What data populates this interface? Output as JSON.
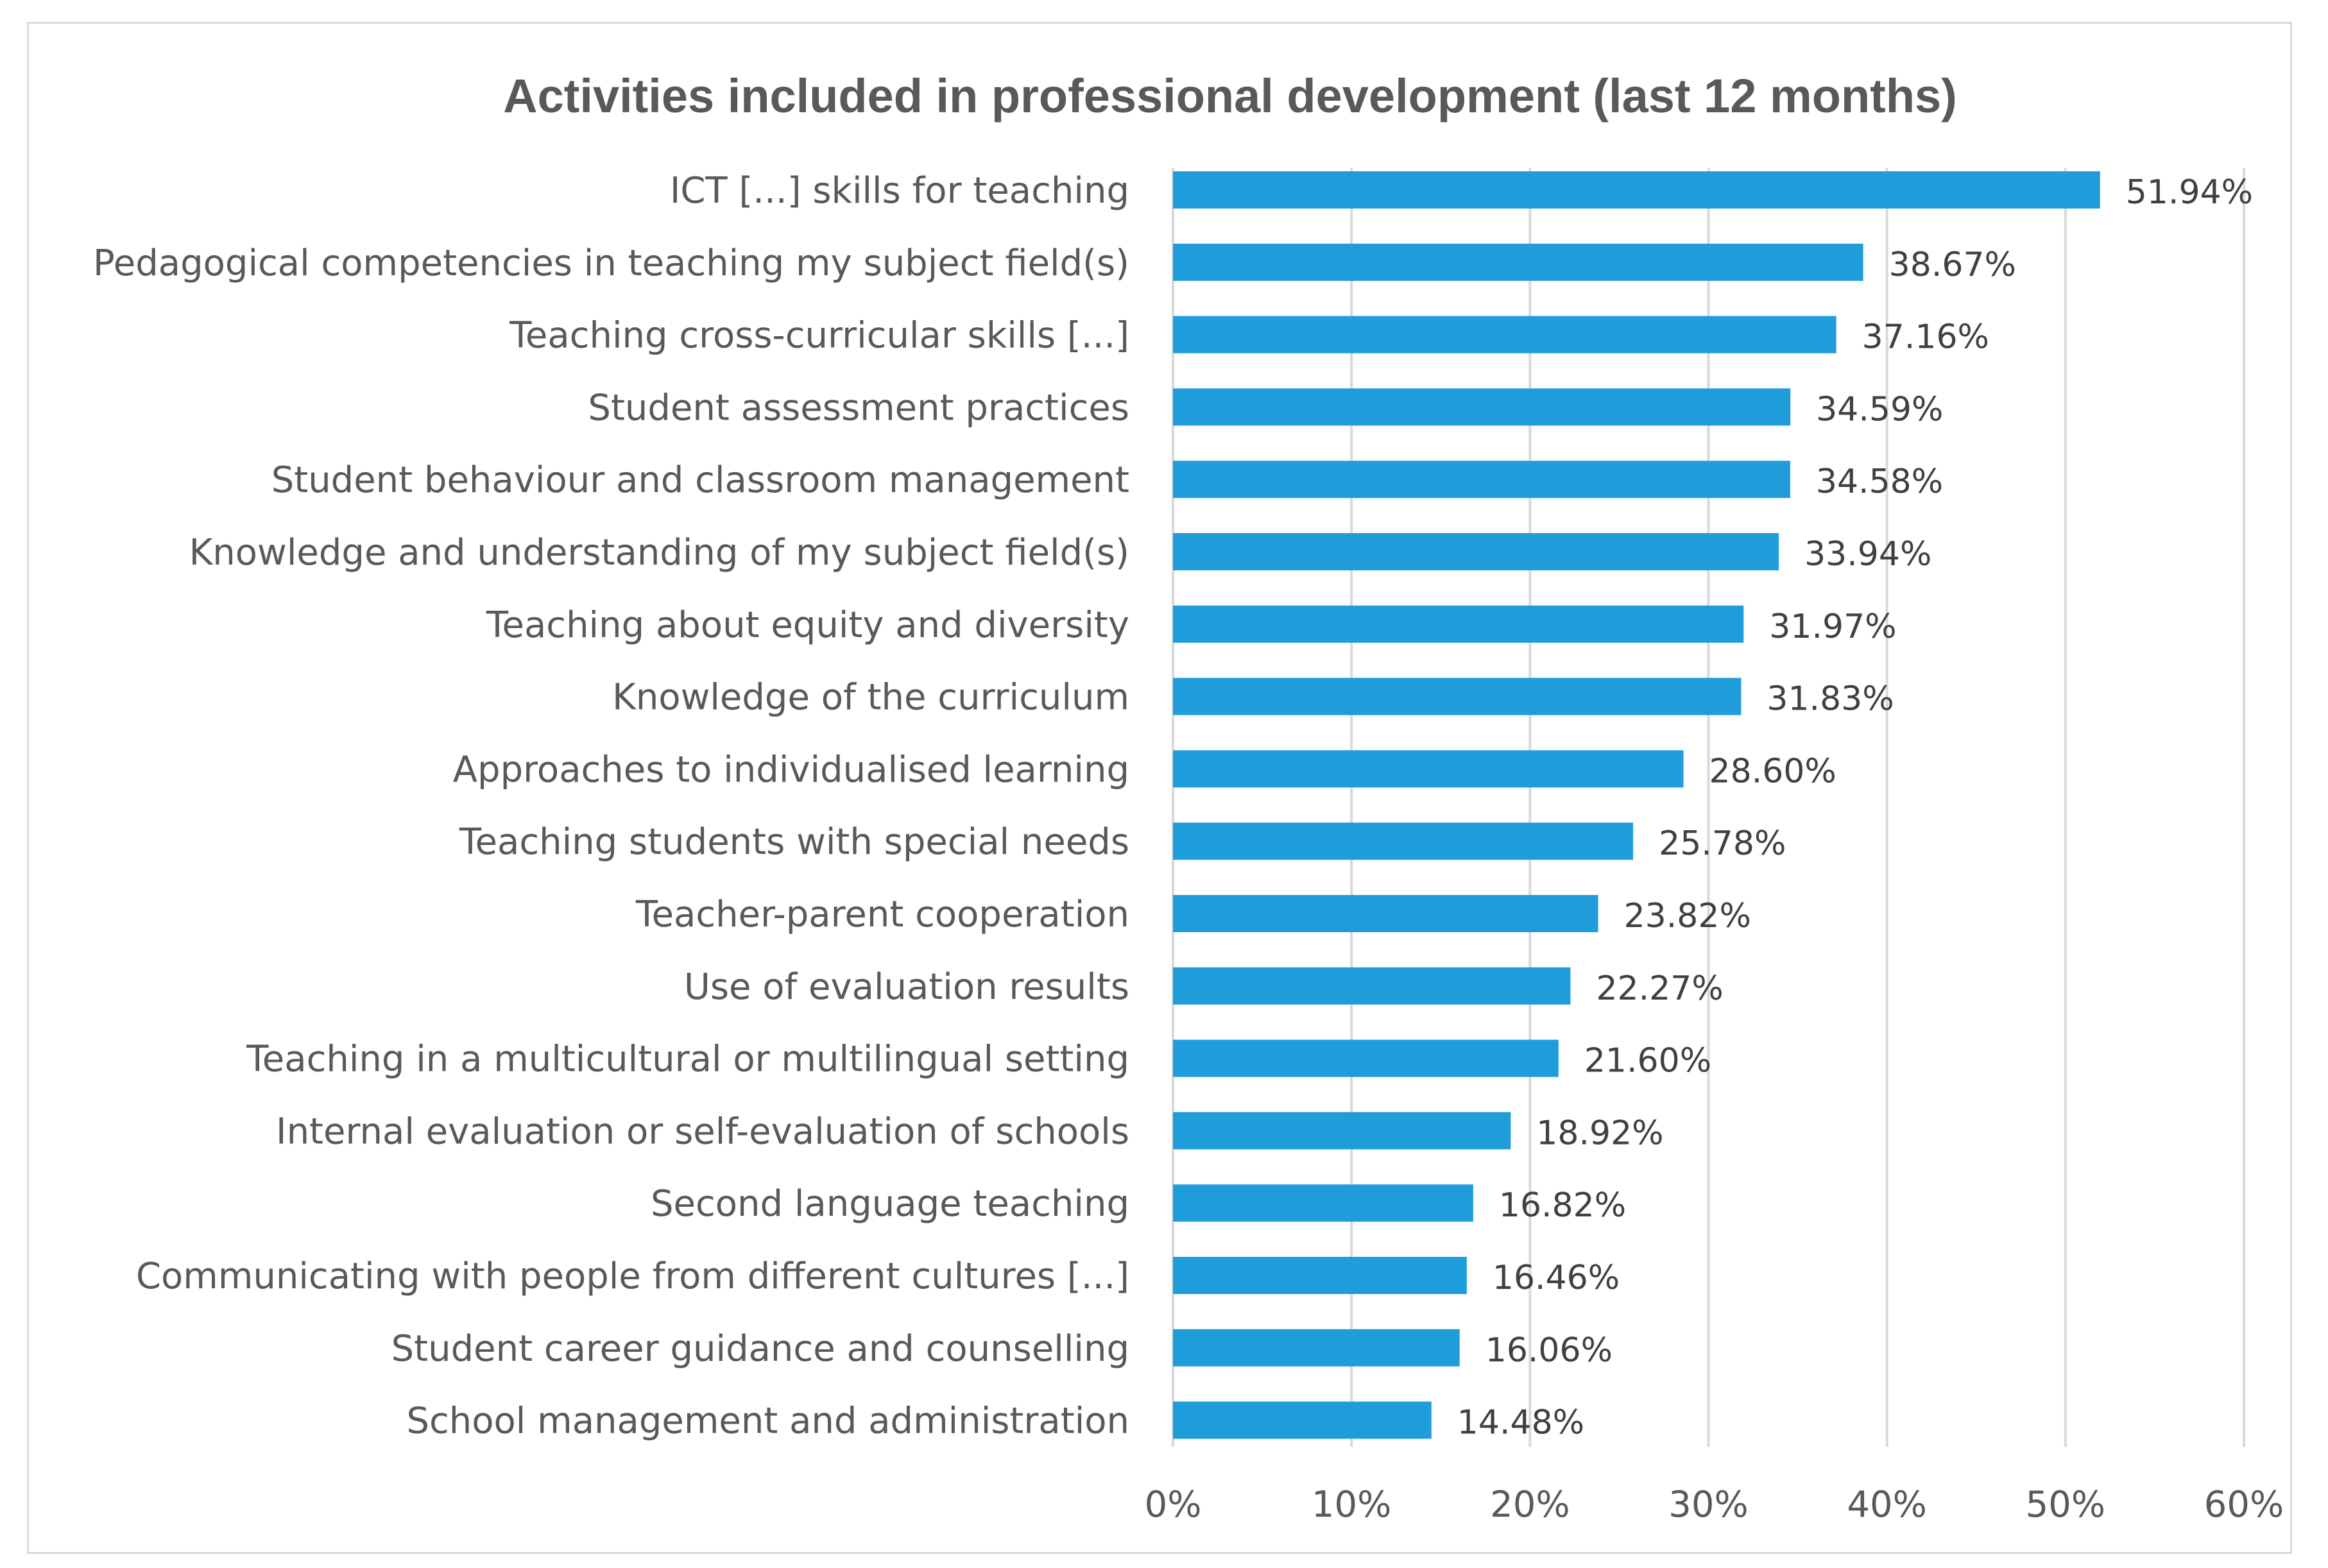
{
  "chart_data": {
    "type": "bar",
    "orientation": "horizontal",
    "title": "Activities included in professional development (last 12 months)",
    "xlabel": "",
    "ylabel": "",
    "xlim": [
      0,
      60
    ],
    "x_ticks": [
      "0%",
      "10%",
      "20%",
      "30%",
      "40%",
      "50%",
      "60%"
    ],
    "grid": "vertical",
    "bar_color": "#1f9ddb",
    "categories": [
      "ICT [...] skills for teaching",
      "Pedagogical competencies in teaching my subject field(s)",
      "Teaching cross-curricular skills [...]",
      "Student assessment practices",
      "Student behaviour and classroom management",
      "Knowledge and understanding of my subject field(s)",
      "Teaching about equity and diversity",
      "Knowledge of the curriculum",
      "Approaches to individualised learning",
      "Teaching students with special needs",
      "Teacher-parent cooperation",
      "Use of evaluation results",
      "Teaching in a multicultural or multilingual setting",
      "Internal evaluation or self-evaluation of schools",
      "Second language teaching",
      "Communicating with people from different cultures [...]",
      "Student career guidance and counselling",
      "School management and administration"
    ],
    "values": [
      51.94,
      38.67,
      37.16,
      34.59,
      34.58,
      33.94,
      31.97,
      31.83,
      28.6,
      25.78,
      23.82,
      22.27,
      21.6,
      18.92,
      16.82,
      16.46,
      16.06,
      14.48
    ],
    "value_labels": [
      "51.94%",
      "38.67%",
      "37.16%",
      "34.59%",
      "34.58%",
      "33.94%",
      "31.97%",
      "31.83%",
      "28.60%",
      "25.78%",
      "23.82%",
      "22.27%",
      "21.60%",
      "18.92%",
      "16.82%",
      "16.46%",
      "16.06%",
      "14.48%"
    ]
  }
}
